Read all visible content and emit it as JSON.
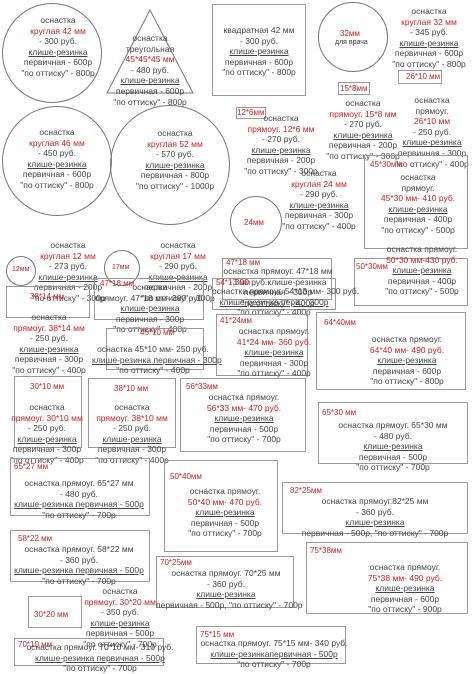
{
  "items": [
    {
      "lines": [
        "оснастка",
        "круглая 42 мм",
        "- 300 руб.",
        "клише-резинка",
        "первичная - 600р",
        "\"по оттиску\" - 800р"
      ]
    },
    {
      "lines": [
        "оснастка",
        "треугольная",
        "45*45*45 мм",
        "- 480 руб.",
        "клише-резинка",
        "первичная - 600р",
        "\"по оттиску\" - 800р"
      ]
    },
    {
      "lines": [
        "квадратная 42 мм",
        "- 300 руб.",
        "клише-резинка",
        "первичная - 600р",
        "\"по оттиску\" - 800р"
      ]
    },
    {
      "tag": "32мм",
      "sub": "для врача"
    },
    {
      "lines": [
        "оснастка",
        "круглая 32 мм",
        "- 345 руб.",
        "клише-резинка",
        "первичная - 600р",
        "\"по оттиску\" - 800р"
      ]
    },
    {
      "tag": "26*10 мм"
    },
    {
      "tag": "15*8мм"
    },
    {
      "lines": [
        "оснастка",
        "прямоуг.",
        "26*10 мм",
        "- 250 руб.",
        "клише-резинка",
        "первичная - 300р",
        "\"по оттиску\" - 400р"
      ]
    },
    {
      "lines": [
        "оснастка",
        "круглая 46 мм",
        "- 450 руб.",
        "клише-резинка",
        "первичная - 600р",
        "\"по оттиску\" - 800р"
      ]
    },
    {
      "lines": [
        "оснастка",
        "круглая 52 мм",
        "- 570 руб.",
        "клише-резинка",
        "первичная - 800р",
        "\"по оттиску\" - 1000р"
      ]
    },
    {
      "tag": "12*6мм"
    },
    {
      "lines": [
        "оснастка",
        "прямоуг. 15*8 мм",
        "- 270 руб.",
        "клише-резинка",
        "первичная - 200р",
        "\"по оттиску\" - 300р"
      ]
    },
    {
      "lines": [
        "оснастка",
        "прямоуг. 12*6 мм",
        "- 270 руб.",
        "клише-резинка",
        "первичная - 200р",
        "\"по оттиску\" - 300р"
      ]
    },
    {
      "tag": "24мм"
    },
    {
      "lines": [
        "оснастка",
        "круглая 24 мм",
        "- 290 руб.",
        "клише-резинка",
        "первичная - 300р",
        "\"по оттиску\" - 400р"
      ]
    },
    {
      "tag": "45*30мм"
    },
    {
      "lines": [
        "оснастка",
        "прямоуг.",
        "45*30 мм- 410 руб.",
        "клише-резинка",
        "первичная - 400р",
        "\"по оттиску\" - 500р"
      ]
    },
    {
      "tag": "12мм"
    },
    {
      "lines": [
        "оснастка",
        "круглая 12 мм",
        "- 273 руб.",
        "клише-резинка",
        "первичная - 200р",
        "\"по оттиску\" - 300р"
      ]
    },
    {
      "tag": "17мм"
    },
    {
      "lines": [
        "оснастка",
        "круглая 17 мм",
        "- 290 руб.",
        "клише-резинка",
        "первичная - 200р",
        "\"по оттиску\" - 300р"
      ]
    },
    {
      "tag": "47*18 мм"
    },
    {
      "lines": [
        "оснастка прямоуг. 47*18 мм",
        "- 300 руб.клише-резинка",
        "первичная - 300р",
        "\"по оттиску\" - 400р"
      ]
    },
    {
      "tag": "50*30мм"
    },
    {
      "lines": [
        "оснастка прямоуг.",
        "50*30 мм-430 руб.",
        "клише-резинка",
        "первичная - 400р",
        "\"по оттиску\" - 500р"
      ]
    },
    {
      "tag": "47*18 мм"
    },
    {
      "lines": [
        "оснастка",
        "прямоуг. 47*18 мм- 300 руб.",
        "клише-резинка",
        "первичная - 300р",
        "\"по оттиску\" - 400р"
      ]
    },
    {
      "tag": "54*13 мм"
    },
    {
      "lines": [
        "оснастка прямоуг. 54*13 мм- 300 руб.",
        "клише-резинка перв. - 300р",
        "\"по оттиску\" - 400р"
      ]
    },
    {
      "tag": "38*14 мм"
    },
    {
      "lines": [
        "оснастка",
        "прямоуг. 38*14 мм",
        "- 250 руб.",
        "клише-резинка",
        "первичная - 300р",
        "\"по оттиску\" - 400р"
      ]
    },
    {
      "tag": "41*24мм"
    },
    {
      "lines": [
        "оснастка прямоуг.",
        "41*24 мм- 360 руб.",
        "клише-резинка",
        "первичная - 300р",
        "\"по оттиску\" - 400р"
      ]
    },
    {
      "tag": "64*40мм"
    },
    {
      "lines": [
        "оснастка прямоуг.",
        "64*40 мм- 490 руб.",
        "клише-резинка",
        "первичная - 600р",
        "\"по оттиску\" - 800р"
      ]
    },
    {
      "tag": "45*10 мм"
    },
    {
      "lines": [
        "оснастка 45*10 мм- 250 руб.",
        "клише-резинка первичная - 300р",
        "\"по оттиску\" - 400р"
      ]
    },
    {
      "tag": "30*10 мм"
    },
    {
      "lines": [
        "оснастка",
        "прямоуг. 30*10 мм",
        "- 250 руб.",
        "клише-резинка",
        "первичная - 300р",
        "\"по оттиску\" - 400р"
      ]
    },
    {
      "tag": "38*10 мм"
    },
    {
      "lines": [
        "оснастка",
        "прямоуг. 38*10 мм",
        "- 250 руб.",
        "клише-резинка",
        "первичная - 300р",
        "\"по оттиску\" - 400р"
      ]
    },
    {
      "tag": "56*33мм"
    },
    {
      "lines": [
        "оснастка прямоуг.",
        "56*33 мм- 470 руб.",
        "клише-резинка",
        "первичная - 500р",
        "\"по оттиску\" - 700р"
      ]
    },
    {
      "tag": "65*30 мм"
    },
    {
      "lines": [
        "оснастка прямоуг. 65*30 мм",
        "- 480 руб.",
        "клише-резинка",
        "первичная - 500р",
        "\"по оттиску\" - 700р"
      ]
    },
    {
      "tag": "65*27 мм"
    },
    {
      "lines": [
        "оснастка прямоуг. 65*27 мм",
        "- 480 руб.",
        "клише-резинка первичная - 500р",
        "\"по оттиску\" - 700р"
      ]
    },
    {
      "tag": "50*40мм"
    },
    {
      "lines": [
        "оснастка прямоуг.",
        "50*40 мм- 470 руб.",
        "клише-резинка",
        "первичная - 500р",
        "\"по оттиску\" - 700р"
      ]
    },
    {
      "tag": "82*25мм"
    },
    {
      "lines": [
        "оснастка прямоуг.82*25 мм",
        "- 360 руб.",
        "клише-резинка",
        "первичная - 500р, \"по оттиску\" - 700р"
      ]
    },
    {
      "tag": "58*22 мм"
    },
    {
      "lines": [
        "оснастка прямоуг. 58*22 мм",
        "- 360 руб.",
        "клише-резинка первичная - 500р",
        "\"по оттиску\" - 700р"
      ]
    },
    {
      "tag": "75*38мм"
    },
    {
      "lines": [
        "оснастка прямоуг.",
        "75*38 мм- 490 руб.",
        "клише-резинка",
        "первичная - 600р",
        "\"по оттиску\" - 900р"
      ]
    },
    {
      "tag": "70*25мм"
    },
    {
      "lines": [
        "оснастка прямоуг. 70*25 мм",
        "- 360 руб.",
        "клише-резинка",
        "первичная - 500р, \"по оттиску\" - 700р"
      ]
    },
    {
      "tag": "30*20 мм"
    },
    {
      "lines": [
        "оснастка",
        "прямоуг. 30*20 мм",
        "- 350 руб.",
        "клише-резинка",
        "первичная - 500р",
        "\"по оттиску\" - 700р"
      ]
    },
    {
      "tag": "75*15 мм"
    },
    {
      "lines": [
        "оснастка прямоуг. 75*15 мм- 340 руб.",
        "клише-резинкапервичная - 500р",
        "\"по оттиску\" - 700р"
      ]
    },
    {
      "tag": "70*10 мм"
    },
    {
      "lines": [
        "оснастка прямоуг. 70*10 мм- 310 руб.",
        "клише-резинка первичная - 500р",
        "\"по оттиску\" - 700р"
      ]
    }
  ],
  "colors": {
    "accent": "#cc2222",
    "text": "#444444",
    "border": "#888888"
  }
}
